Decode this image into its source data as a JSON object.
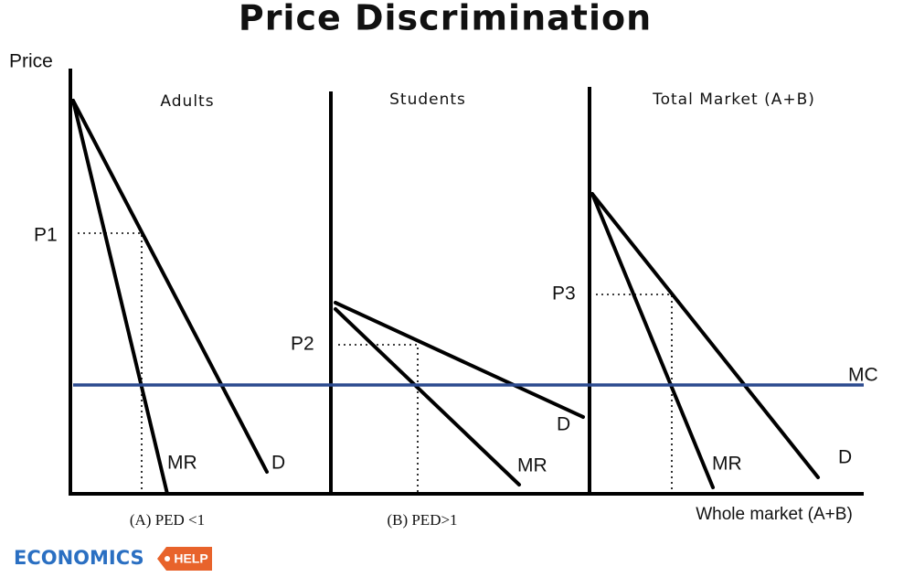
{
  "title": "Price Discrimination",
  "y_axis_label": "Price",
  "panels": [
    {
      "title": "Adults",
      "price": "P1",
      "mr": "MR",
      "d": "D",
      "caption": "(A) PED <1"
    },
    {
      "title": "Students",
      "price": "P2",
      "mr": "MR",
      "d": "D",
      "caption": "(B) PED>1"
    },
    {
      "title": "Total Market (A+B)",
      "price": "P3",
      "mr": "MR",
      "d": "D",
      "caption": "Whole market (A+B)"
    }
  ],
  "mc_label": "MC",
  "logo": {
    "word": "ECONOMICS",
    "badge": "HELP"
  }
}
